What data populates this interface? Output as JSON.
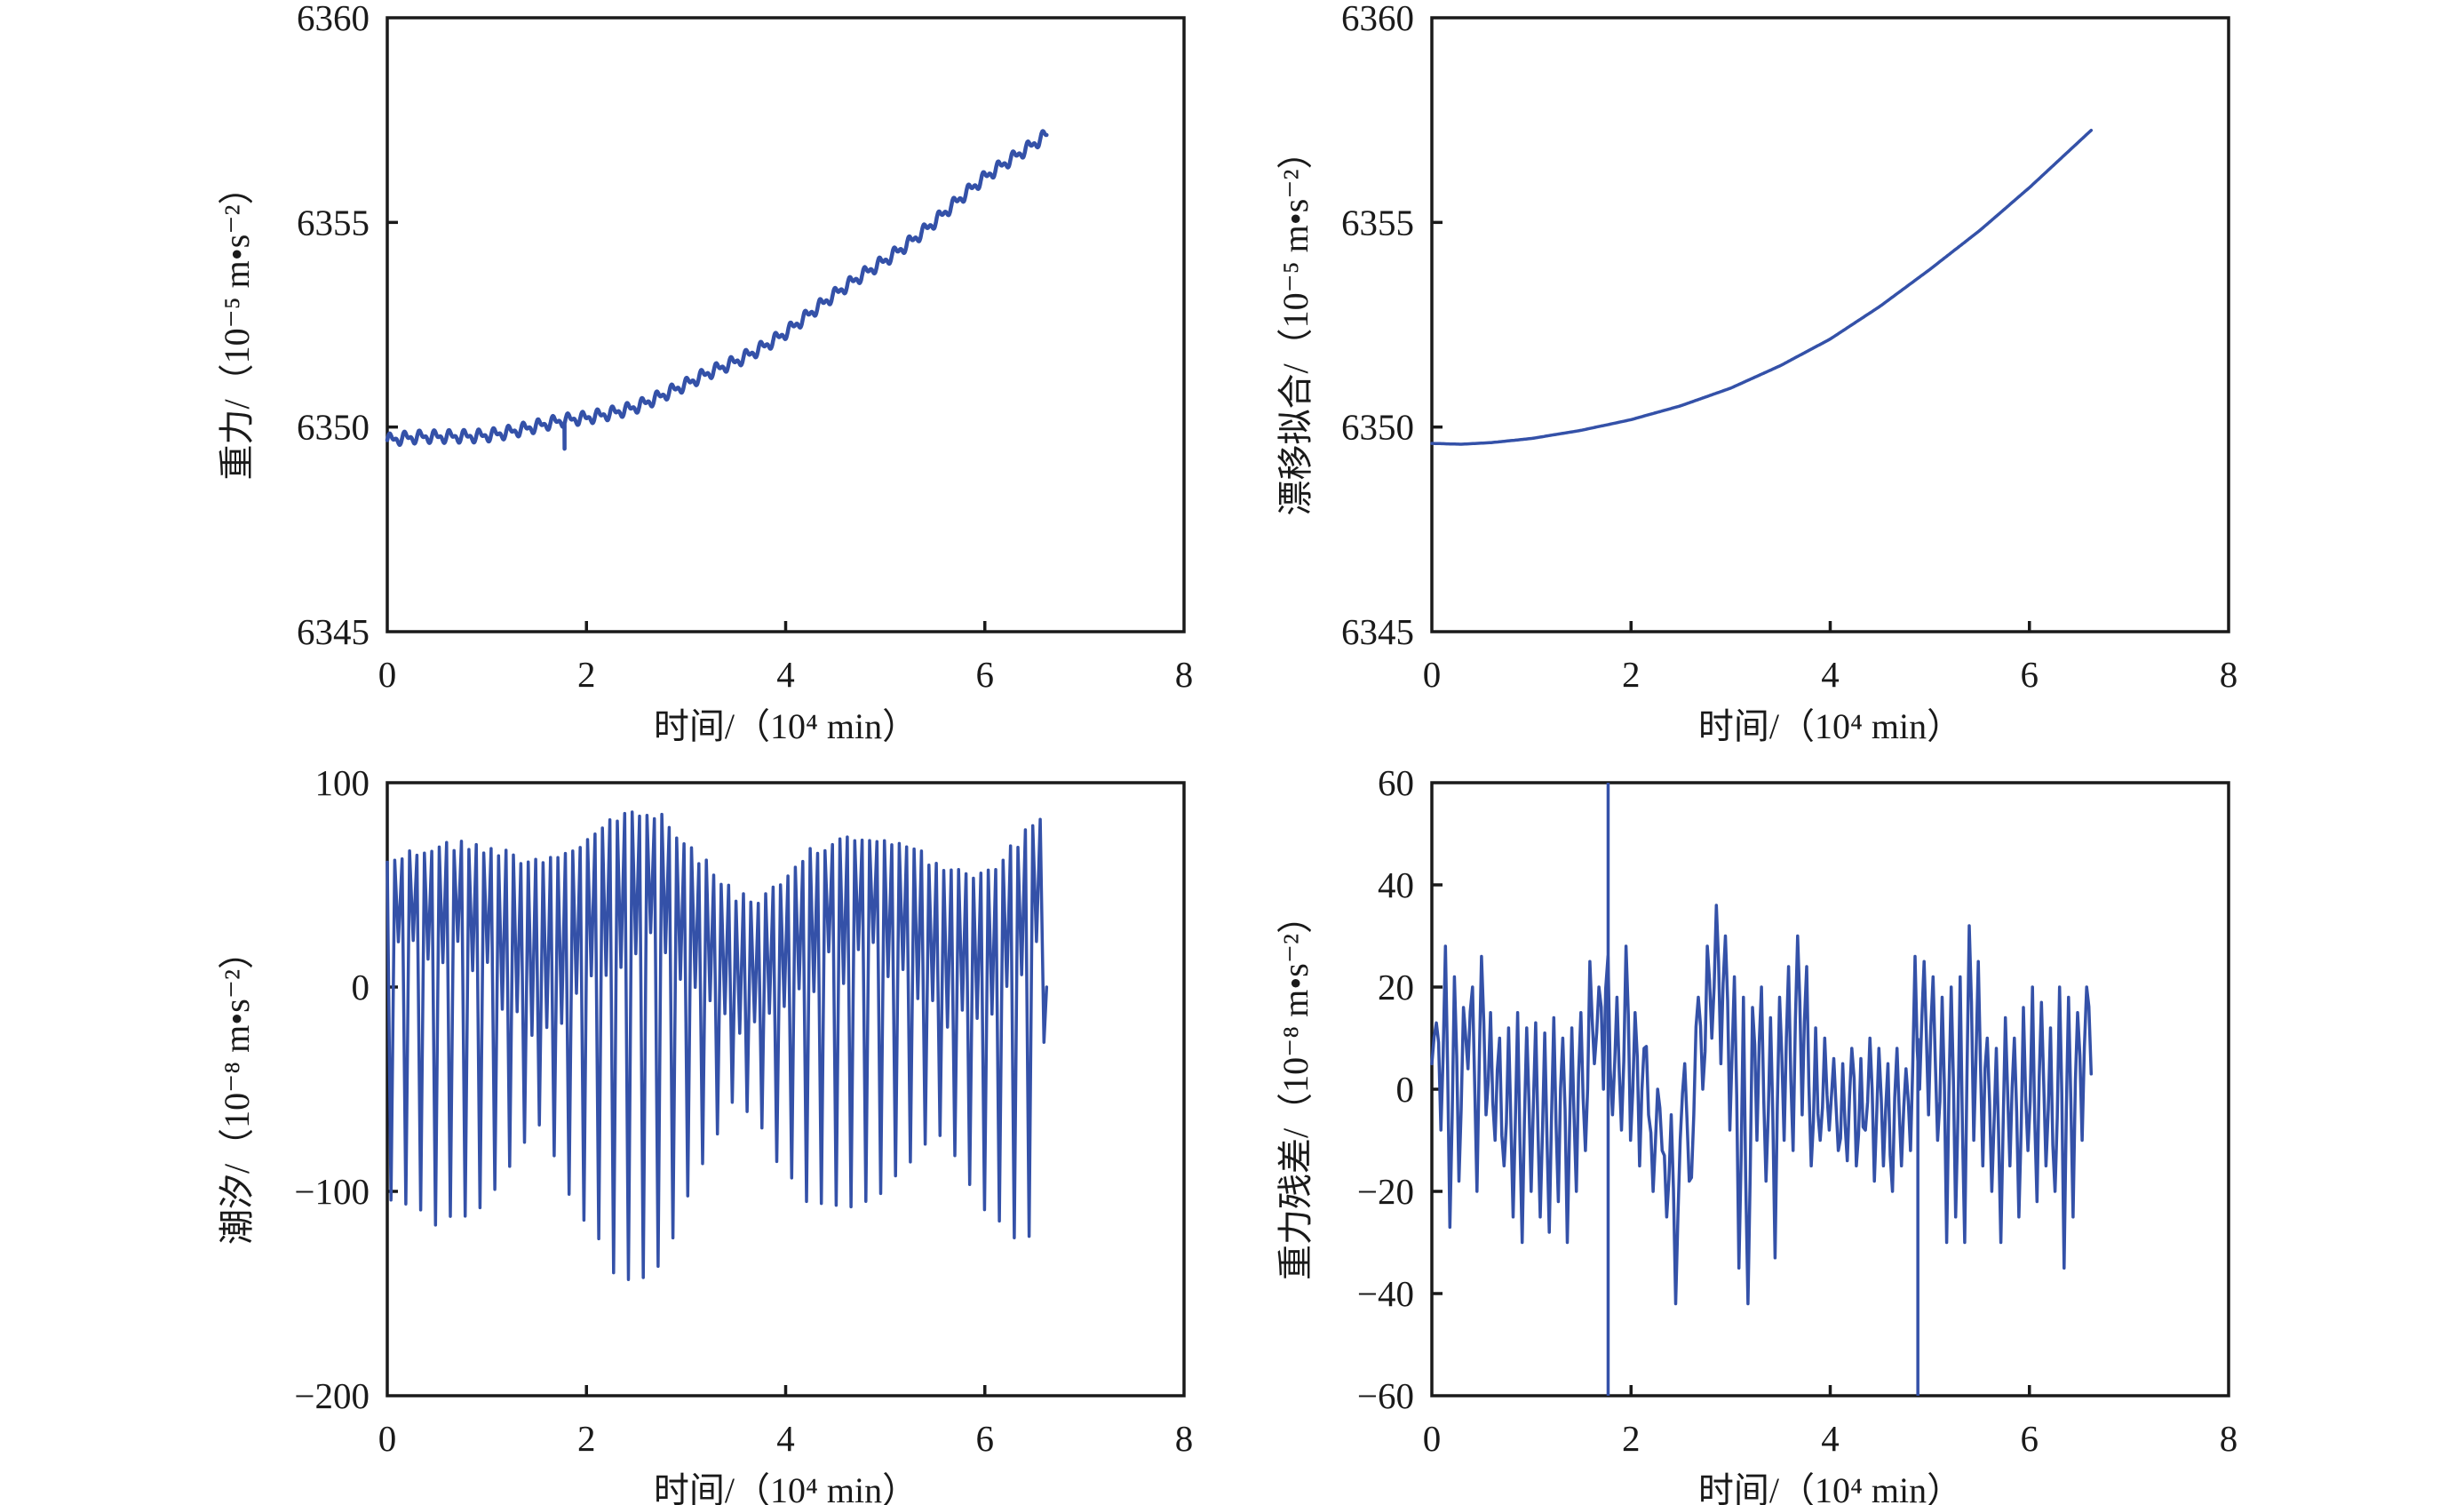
{
  "colors": {
    "series": "#3451a8",
    "axis": "#1a1a1a"
  },
  "chart_data": [
    {
      "id": "gravity",
      "type": "line",
      "title": "",
      "xlabel": "时间/（10⁴ min）",
      "ylabel": "重力/（10⁻⁵ m•s⁻²）",
      "xlim": [
        0,
        8
      ],
      "ylim": [
        6345,
        6360
      ],
      "xticks": [
        0,
        2,
        4,
        6,
        8
      ],
      "xtick_labels": [
        "0",
        "2",
        "4",
        "6",
        "8"
      ],
      "yticks": [
        6345,
        6350,
        6355,
        6360
      ],
      "ytick_labels": [
        "6345",
        "6350",
        "6355",
        "6360"
      ],
      "grid": false,
      "trend_points": [
        [
          0,
          6349.68
        ],
        [
          0.5,
          6349.72
        ],
        [
          1.0,
          6349.85
        ],
        [
          1.5,
          6350.0
        ],
        [
          2.0,
          6350.2
        ],
        [
          2.5,
          6350.55
        ],
        [
          3.0,
          6351.0
        ],
        [
          3.5,
          6351.6
        ],
        [
          4.0,
          6352.35
        ],
        [
          4.5,
          6353.2
        ],
        [
          5.0,
          6354.1
        ],
        [
          5.5,
          6355.05
        ],
        [
          6.0,
          6356.05
        ],
        [
          6.62,
          6357.2
        ]
      ],
      "tidal_ripple_amplitude": 0.18,
      "glitch": {
        "x": 1.78,
        "y": 6349.47
      }
    },
    {
      "id": "drift-fit",
      "type": "line",
      "title": "",
      "xlabel": "时间/（10⁴ min）",
      "ylabel": "漂移拟合/（10⁻⁵ m•s⁻²）",
      "xlim": [
        0,
        8
      ],
      "ylim": [
        6345,
        6360
      ],
      "xticks": [
        0,
        2,
        4,
        6,
        8
      ],
      "xtick_labels": [
        "0",
        "2",
        "4",
        "6",
        "8"
      ],
      "yticks": [
        6345,
        6350,
        6355,
        6360
      ],
      "ytick_labels": [
        "6345",
        "6350",
        "6355",
        "6360"
      ],
      "grid": false,
      "points": [
        [
          0,
          6349.6
        ],
        [
          0.3,
          6349.58
        ],
        [
          0.6,
          6349.62
        ],
        [
          1.0,
          6349.72
        ],
        [
          1.5,
          6349.92
        ],
        [
          2.0,
          6350.18
        ],
        [
          2.5,
          6350.52
        ],
        [
          3.0,
          6350.95
        ],
        [
          3.5,
          6351.5
        ],
        [
          4.0,
          6352.15
        ],
        [
          4.5,
          6352.95
        ],
        [
          5.0,
          6353.85
        ],
        [
          5.5,
          6354.8
        ],
        [
          6.0,
          6355.85
        ],
        [
          6.62,
          6357.25
        ]
      ]
    },
    {
      "id": "tide",
      "type": "line",
      "title": "",
      "xlabel": "时间/（10⁴ min）",
      "ylabel": "潮汐/（10⁻⁸ m•s⁻²）",
      "xlim": [
        0,
        8
      ],
      "ylim": [
        -200,
        100
      ],
      "xticks": [
        0,
        2,
        4,
        6,
        8
      ],
      "xtick_labels": [
        "0",
        "2",
        "4",
        "6",
        "8"
      ],
      "yticks": [
        -200,
        -100,
        0,
        100
      ],
      "ytick_labels": [
        "−200",
        "−100",
        "0",
        "100"
      ],
      "grid": false,
      "semidiurnal_period_1e4min": 0.0745,
      "envelope_x": [
        0,
        0.25,
        0.5,
        0.75,
        1.0,
        1.25,
        1.5,
        1.75,
        2.0,
        2.25,
        2.5,
        2.75,
        3.0,
        3.25,
        3.5,
        3.75,
        4.0,
        4.25,
        4.5,
        4.75,
        5.0,
        5.25,
        5.5,
        5.75,
        6.0,
        6.25,
        6.5,
        6.62
      ],
      "high_envelope": [
        65,
        68,
        72,
        72,
        71,
        67,
        65,
        68,
        74,
        84,
        89,
        85,
        72,
        60,
        48,
        44,
        55,
        68,
        74,
        76,
        75,
        70,
        64,
        58,
        56,
        70,
        82,
        85
      ],
      "low_envelope": [
        -105,
        -112,
        -118,
        -116,
        -108,
        -88,
        -70,
        -95,
        -118,
        -140,
        -147,
        -140,
        -110,
        -80,
        -58,
        -72,
        -95,
        -110,
        -112,
        -110,
        -100,
        -88,
        -75,
        -88,
        -110,
        -125,
        -128,
        0
      ],
      "mid_low_envelope": [
        10,
        15,
        18,
        15,
        5,
        -10,
        -20,
        -10,
        5,
        18,
        22,
        18,
        5,
        -10,
        -22,
        -25,
        -15,
        0,
        10,
        15,
        12,
        2,
        -12,
        -20,
        -10,
        5,
        15,
        0
      ]
    },
    {
      "id": "residual",
      "type": "line",
      "title": "",
      "xlabel": "时间/（10⁴ min）",
      "ylabel": "重力残差/（10⁻⁸ m•s⁻²）",
      "xlim": [
        0,
        8
      ],
      "ylim": [
        -60,
        60
      ],
      "xticks": [
        0,
        2,
        4,
        6,
        8
      ],
      "xtick_labels": [
        "0",
        "2",
        "4",
        "6",
        "8"
      ],
      "yticks": [
        -60,
        -40,
        -20,
        0,
        20,
        40,
        60
      ],
      "ytick_labels": [
        "−60",
        "−40",
        "−20",
        "0",
        "20",
        "40",
        "60"
      ],
      "grid": false,
      "values": [
        5,
        13,
        -8,
        28,
        -27,
        22,
        -18,
        16,
        4,
        20,
        -20,
        26,
        -5,
        15,
        -10,
        10,
        -15,
        12,
        -25,
        15,
        -30,
        12,
        -20,
        13,
        -25,
        11,
        -28,
        14,
        -22,
        10,
        -30,
        12,
        -20,
        15,
        -12,
        25,
        5,
        20,
        0,
        26,
        -5,
        18,
        -8,
        28,
        -10,
        15,
        -15,
        8,
        -5,
        -20,
        0,
        -12,
        -25,
        -5,
        -42,
        -10,
        5,
        -18,
        -5,
        18,
        0,
        28,
        10,
        36,
        5,
        30,
        -8,
        22,
        -35,
        18,
        -42,
        16,
        -10,
        20,
        -18,
        14,
        -33,
        18,
        -10,
        24,
        -12,
        30,
        -5,
        24,
        -15,
        12,
        -10,
        10,
        -8,
        6,
        -12,
        5,
        -14,
        8,
        -15,
        6,
        -8,
        10,
        -18,
        8,
        -15,
        5,
        -20,
        8,
        -15,
        4,
        -12,
        26,
        0,
        25,
        -5,
        22,
        -10,
        18,
        -30,
        20,
        -25,
        22,
        -30,
        32,
        -10,
        25,
        -15,
        10,
        -20,
        8,
        -30,
        14,
        -15,
        10,
        -25,
        16,
        -12,
        20,
        -22,
        17,
        -15,
        12,
        -20,
        20,
        -35,
        18,
        -25,
        15,
        -10,
        20,
        3
      ],
      "spikes": [
        {
          "x": 1.77,
          "y_min": -60,
          "y_max": 60
        },
        {
          "x": 4.88,
          "y_min": -60,
          "y_max": 10
        }
      ],
      "x_end": 6.62
    }
  ]
}
